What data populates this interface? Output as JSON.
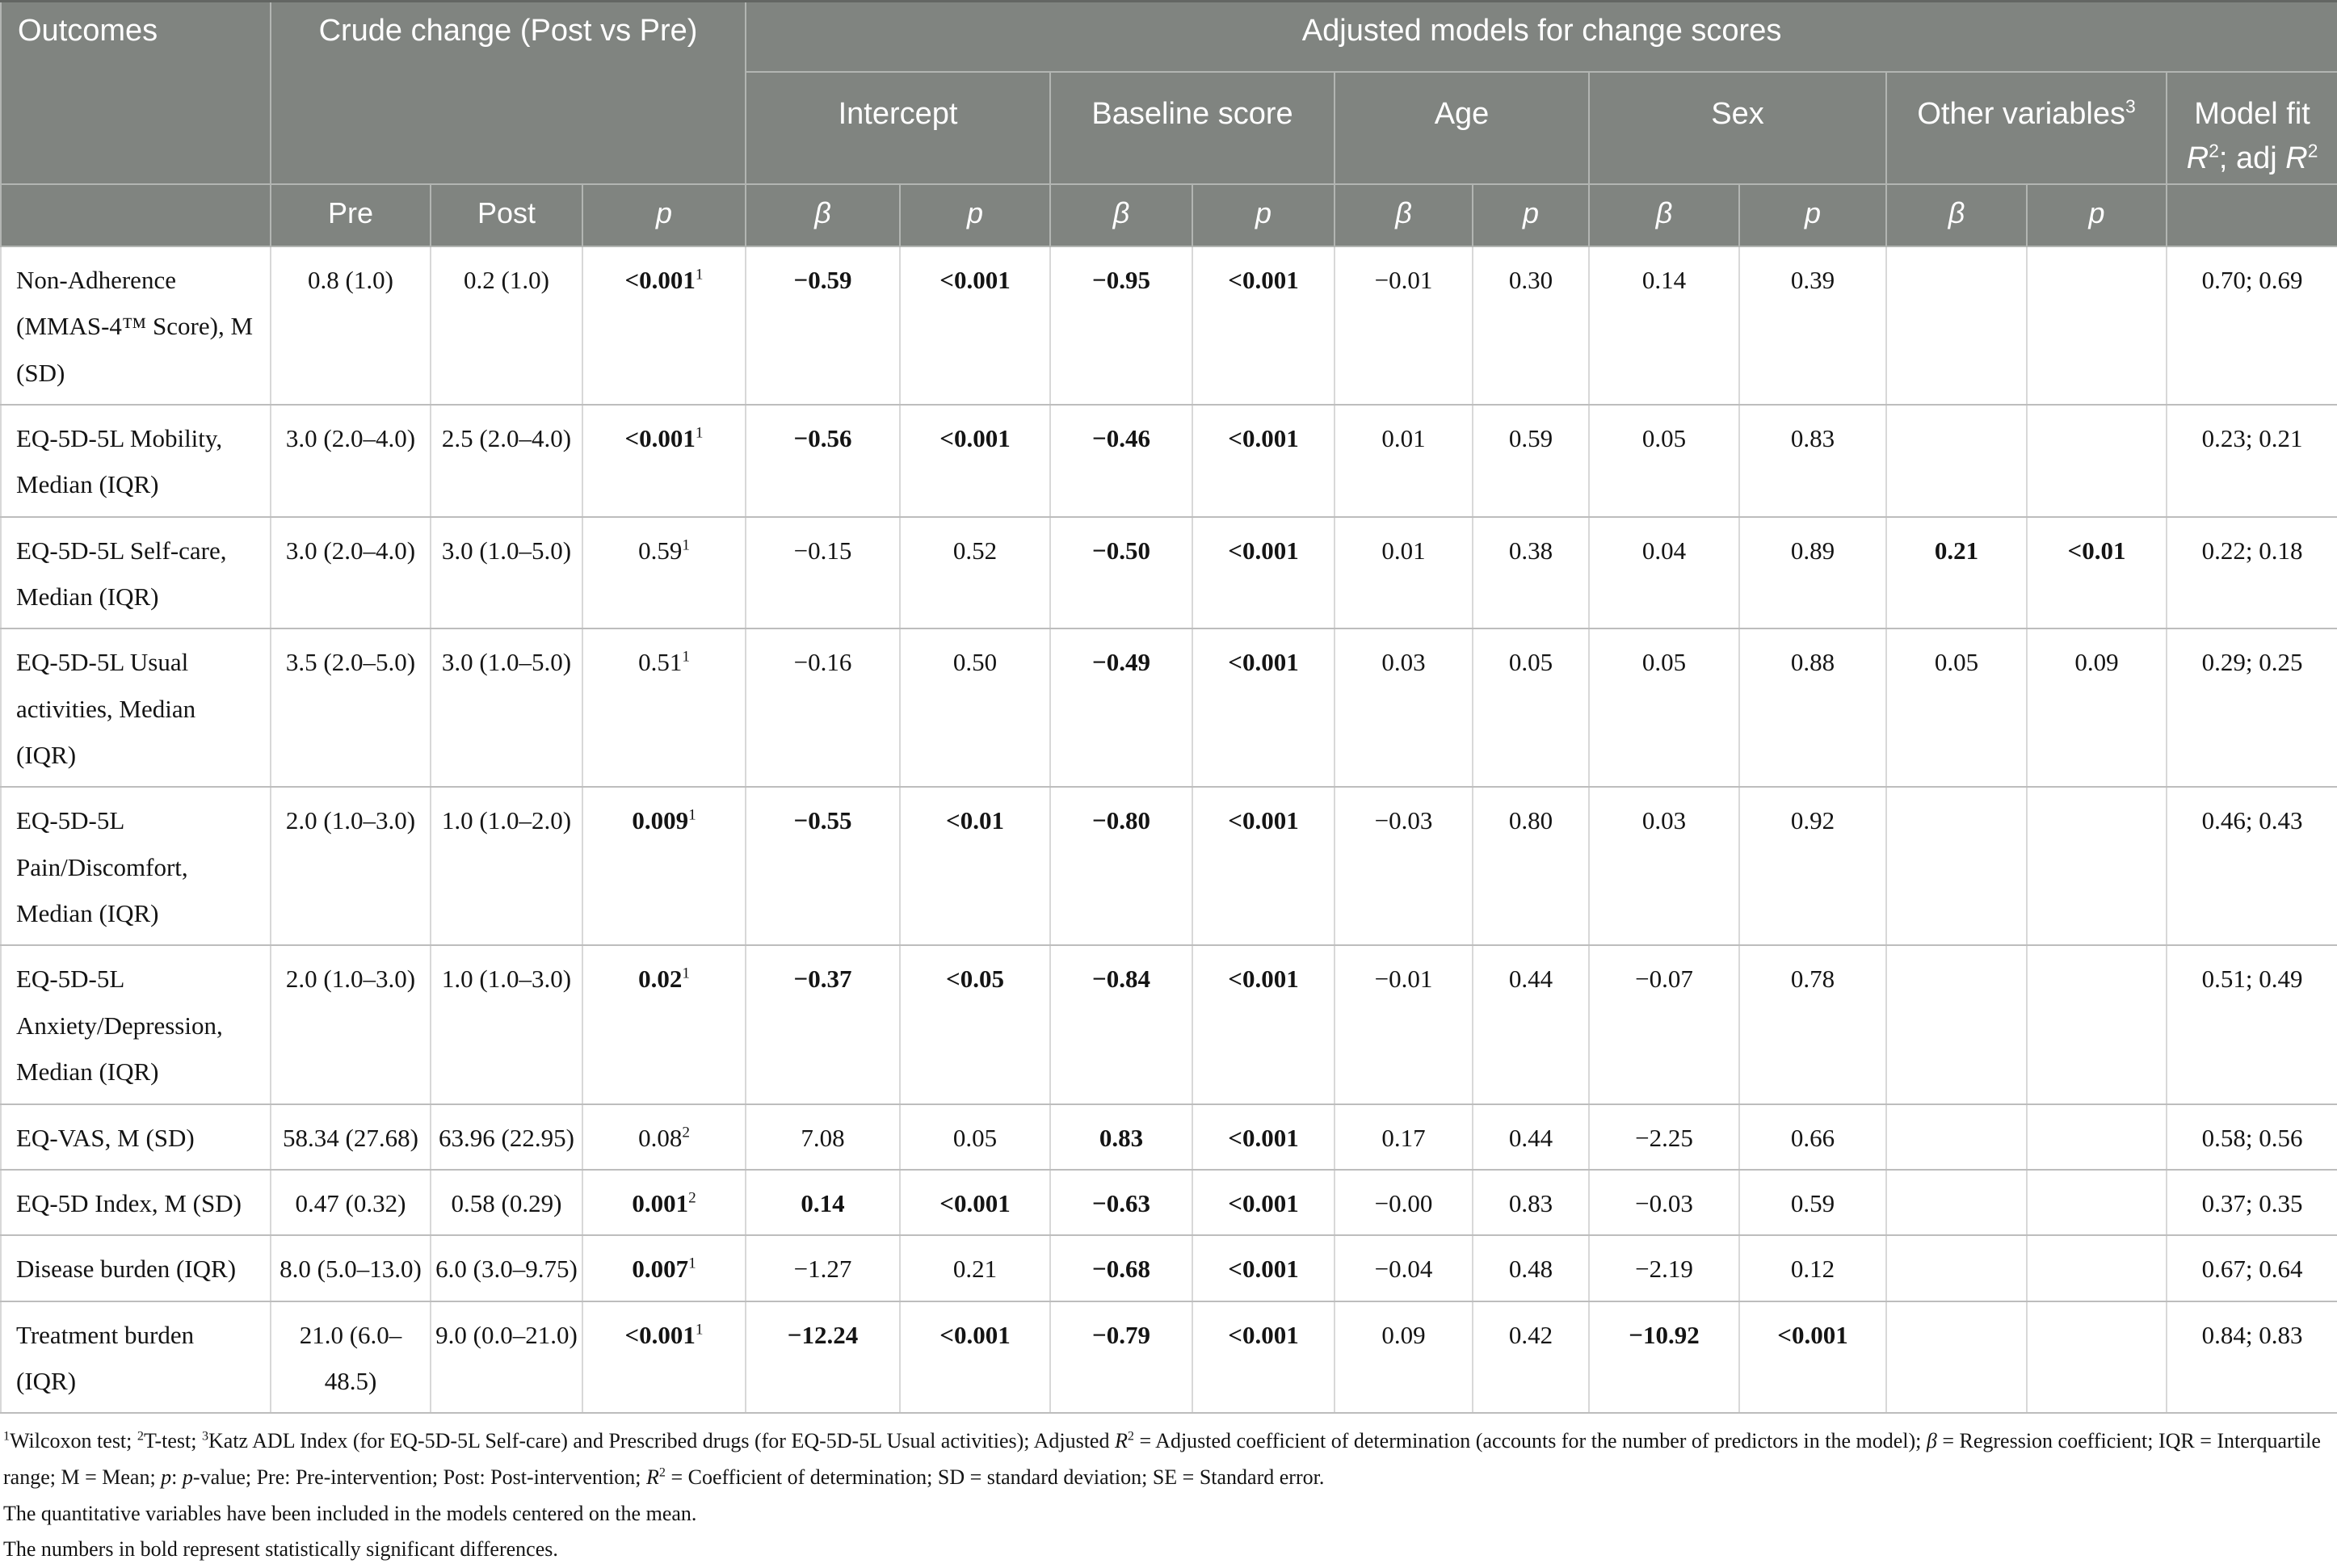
{
  "colors": {
    "header_bg": "#808480",
    "header_text": "#ffffff",
    "header_line": "#b2b5b2",
    "header_top": "#636663",
    "grid_v": "#d8d8d8",
    "grid_h": "#bdbdbd",
    "body_bg": "#ffffff",
    "text": "#141414"
  },
  "table": {
    "header": {
      "outcomes": "Outcomes",
      "crude": "Crude change (Post vs Pre)",
      "adjusted": "Adjusted models for change scores",
      "groups": [
        {
          "label": "Intercept",
          "cols": 2
        },
        {
          "label": "Baseline score",
          "cols": 2
        },
        {
          "label": "Age",
          "cols": 2
        },
        {
          "label": "Sex",
          "cols": 2
        },
        {
          "label": "Other variables^3^",
          "cols": 2
        },
        {
          "label": "Model fit\n*R*^2^; adj *R*^2^",
          "cols": 1
        }
      ],
      "subheaders": [
        "Pre",
        "Post",
        "p",
        "β",
        "p",
        "β",
        "p",
        "β",
        "p",
        "β",
        "p",
        "β",
        "p"
      ]
    },
    "column_names": [
      "pre",
      "post",
      "p-crude",
      "beta-intercept",
      "p-intercept",
      "beta-baseline",
      "p-baseline",
      "beta-age",
      "p-age",
      "beta-sex",
      "p-sex",
      "beta-other",
      "p-other",
      "model-fit"
    ],
    "rows": [
      {
        "label": "Non-Adherence (MMAS-4™ Score), M (SD)",
        "cells": [
          "0.8 (1.0)",
          "0.2 (1.0)",
          {
            "t": "<0.001^1^",
            "b": true
          },
          {
            "t": "−0.59",
            "b": true
          },
          {
            "t": "<0.001",
            "b": true
          },
          {
            "t": "−0.95",
            "b": true
          },
          {
            "t": "<0.001",
            "b": true
          },
          "−0.01",
          "0.30",
          "0.14",
          "0.39",
          "",
          "",
          "0.70; 0.69"
        ]
      },
      {
        "label": "EQ-5D-5L Mobility, Median (IQR)",
        "cells": [
          "3.0 (2.0–4.0)",
          "2.5 (2.0–4.0)",
          {
            "t": "<0.001^1^",
            "b": true
          },
          {
            "t": "−0.56",
            "b": true
          },
          {
            "t": "<0.001",
            "b": true
          },
          {
            "t": "−0.46",
            "b": true
          },
          {
            "t": "<0.001",
            "b": true
          },
          "0.01",
          "0.59",
          "0.05",
          "0.83",
          "",
          "",
          "0.23; 0.21"
        ]
      },
      {
        "label": "EQ-5D-5L Self-care, Median (IQR)",
        "cells": [
          "3.0 (2.0–4.0)",
          "3.0 (1.0–5.0)",
          "0.59^1^",
          "−0.15",
          "0.52",
          {
            "t": "−0.50",
            "b": true
          },
          {
            "t": "<0.001",
            "b": true
          },
          "0.01",
          "0.38",
          "0.04",
          "0.89",
          {
            "t": "0.21",
            "b": true
          },
          {
            "t": "<0.01",
            "b": true
          },
          "0.22; 0.18"
        ]
      },
      {
        "label": "EQ-5D-5L Usual activities, Median (IQR)",
        "cells": [
          "3.5 (2.0–5.0)",
          "3.0 (1.0–5.0)",
          "0.51^1^",
          "−0.16",
          "0.50",
          {
            "t": "−0.49",
            "b": true
          },
          {
            "t": "<0.001",
            "b": true
          },
          "0.03",
          "0.05",
          "0.05",
          "0.88",
          "0.05",
          "0.09",
          "0.29; 0.25"
        ]
      },
      {
        "label": "EQ-5D-5L Pain/Discomfort, Median (IQR)",
        "cells": [
          "2.0 (1.0–3.0)",
          "1.0 (1.0–2.0)",
          {
            "t": "0.009^1^",
            "b": true
          },
          {
            "t": "−0.55",
            "b": true
          },
          {
            "t": "<0.01",
            "b": true
          },
          {
            "t": "−0.80",
            "b": true
          },
          {
            "t": "<0.001",
            "b": true
          },
          "−0.03",
          "0.80",
          "0.03",
          "0.92",
          "",
          "",
          "0.46; 0.43"
        ]
      },
      {
        "label": "EQ-5D-5L Anxiety/Depression, Median (IQR)",
        "cells": [
          "2.0 (1.0–3.0)",
          "1.0 (1.0–3.0)",
          {
            "t": "0.02^1^",
            "b": true
          },
          {
            "t": "−0.37",
            "b": true
          },
          {
            "t": "<0.05",
            "b": true
          },
          {
            "t": "−0.84",
            "b": true
          },
          {
            "t": "<0.001",
            "b": true
          },
          "−0.01",
          "0.44",
          "−0.07",
          "0.78",
          "",
          "",
          "0.51; 0.49"
        ]
      },
      {
        "label": "EQ-VAS, M (SD)",
        "cells": [
          "58.34 (27.68)",
          "63.96 (22.95)",
          "0.08^2^",
          "7.08",
          "0.05",
          {
            "t": "0.83",
            "b": true
          },
          {
            "t": "<0.001",
            "b": true
          },
          "0.17",
          "0.44",
          "−2.25",
          "0.66",
          "",
          "",
          "0.58; 0.56"
        ]
      },
      {
        "label": "EQ-5D Index, M (SD)",
        "cells": [
          "0.47 (0.32)",
          "0.58 (0.29)",
          {
            "t": "0.001^2^",
            "b": true
          },
          {
            "t": "0.14",
            "b": true
          },
          {
            "t": "<0.001",
            "b": true
          },
          {
            "t": "−0.63",
            "b": true
          },
          {
            "t": "<0.001",
            "b": true
          },
          "−0.00",
          "0.83",
          "−0.03",
          "0.59",
          "",
          "",
          "0.37; 0.35"
        ]
      },
      {
        "label": "Disease burden (IQR)",
        "cells": [
          "8.0 (5.0–13.0)",
          "6.0 (3.0–9.75)",
          {
            "t": "0.007^1^",
            "b": true
          },
          "−1.27",
          "0.21",
          {
            "t": "−0.68",
            "b": true
          },
          {
            "t": "<0.001",
            "b": true
          },
          "−0.04",
          "0.48",
          "−2.19",
          "0.12",
          "",
          "",
          "0.67; 0.64"
        ]
      },
      {
        "label": "Treatment burden (IQR)",
        "cells": [
          "21.0 (6.0–48.5)",
          "9.0 (0.0–21.0)",
          {
            "t": "<0.001^1^",
            "b": true
          },
          {
            "t": "−12.24",
            "b": true
          },
          {
            "t": "<0.001",
            "b": true
          },
          {
            "t": "−0.79",
            "b": true
          },
          {
            "t": "<0.001",
            "b": true
          },
          "0.09",
          "0.42",
          {
            "t": "−10.92",
            "b": true
          },
          {
            "t": "<0.001",
            "b": true
          },
          "",
          "",
          "0.84; 0.83"
        ]
      }
    ]
  },
  "footnotes": [
    "^1^Wilcoxon test; ^2^T-test; ^3^Katz ADL Index (for EQ-5D-5L Self-care) and Prescribed drugs (for EQ-5D-5L Usual activities); Adjusted *R*^2^ = Adjusted coefficient of determination (accounts for the number of predictors in the model); *β* = Regression coefficient; IQR = Interquartile range; M = Mean; *p*: *p*-value; Pre: Pre-intervention; Post: Post-intervention; *R*^2^ = Coefficient of determination; SD = standard deviation; SE = Standard error.",
    "The quantitative variables have been included in the models centered on the mean.",
    "The numbers in bold represent statistically significant differences."
  ]
}
